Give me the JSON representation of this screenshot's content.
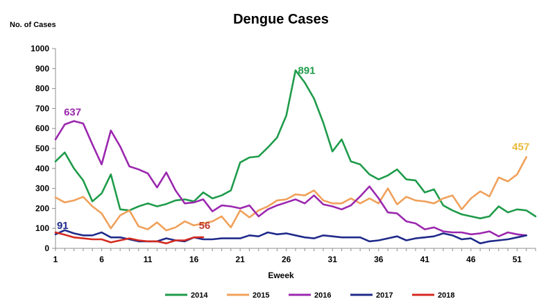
{
  "chart_data": {
    "type": "line",
    "title": "Dengue Cases",
    "ylabel": "No. of Cases",
    "xlabel": "Eweek",
    "ylim": [
      0,
      1000
    ],
    "yticks": [
      0,
      100,
      200,
      300,
      400,
      500,
      600,
      700,
      800,
      900,
      1000
    ],
    "xlim": [
      1,
      53
    ],
    "xticks": [
      1,
      6,
      11,
      16,
      21,
      26,
      31,
      36,
      41,
      46,
      51
    ],
    "grid": false,
    "legend_position": "bottom",
    "series": [
      {
        "name": "2014",
        "color": "#1e9b4a",
        "x": [
          1,
          2,
          3,
          4,
          5,
          6,
          7,
          8,
          9,
          10,
          11,
          12,
          13,
          14,
          15,
          16,
          17,
          18,
          19,
          20,
          21,
          22,
          23,
          24,
          25,
          26,
          27,
          28,
          29,
          30,
          31,
          32,
          33,
          34,
          35,
          36,
          37,
          38,
          39,
          40,
          41,
          42,
          43,
          44,
          45,
          46,
          47,
          48,
          49,
          50,
          51,
          52,
          53
        ],
        "values": [
          435,
          480,
          400,
          340,
          235,
          275,
          370,
          195,
          190,
          210,
          225,
          210,
          222,
          240,
          245,
          235,
          280,
          250,
          265,
          290,
          430,
          455,
          460,
          505,
          555,
          665,
          891,
          830,
          750,
          630,
          485,
          545,
          435,
          420,
          370,
          345,
          365,
          395,
          345,
          340,
          280,
          295,
          215,
          190,
          170,
          160,
          150,
          160,
          210,
          180,
          195,
          190,
          160
        ]
      },
      {
        "name": "2015",
        "color": "#f0a05a",
        "x": [
          1,
          2,
          3,
          4,
          5,
          6,
          7,
          8,
          9,
          10,
          11,
          12,
          13,
          14,
          15,
          16,
          17,
          18,
          19,
          20,
          21,
          22,
          23,
          24,
          25,
          26,
          27,
          28,
          29,
          30,
          31,
          32,
          33,
          34,
          35,
          36,
          37,
          38,
          39,
          40,
          41,
          42,
          43,
          44,
          45,
          46,
          47,
          48,
          49,
          50,
          51,
          52
        ],
        "values": [
          255,
          230,
          240,
          258,
          210,
          175,
          100,
          165,
          190,
          110,
          95,
          130,
          90,
          105,
          135,
          115,
          125,
          135,
          160,
          105,
          190,
          155,
          190,
          210,
          240,
          245,
          270,
          265,
          290,
          240,
          225,
          225,
          250,
          225,
          250,
          225,
          300,
          220,
          258,
          240,
          235,
          225,
          250,
          265,
          195,
          250,
          285,
          260,
          355,
          335,
          370,
          457
        ]
      },
      {
        "name": "2016",
        "color": "#9b27af",
        "x": [
          1,
          2,
          3,
          4,
          5,
          6,
          7,
          8,
          9,
          10,
          11,
          12,
          13,
          14,
          15,
          16,
          17,
          18,
          19,
          20,
          21,
          22,
          23,
          24,
          25,
          26,
          27,
          28,
          29,
          30,
          31,
          32,
          33,
          34,
          35,
          36,
          37,
          38,
          39,
          40,
          41,
          42,
          43,
          44,
          45,
          46,
          47,
          48,
          49,
          50,
          51,
          52
        ],
        "values": [
          545,
          620,
          637,
          625,
          520,
          420,
          590,
          510,
          410,
          395,
          375,
          305,
          380,
          290,
          225,
          230,
          245,
          185,
          215,
          210,
          200,
          215,
          160,
          195,
          215,
          230,
          245,
          225,
          265,
          220,
          210,
          195,
          215,
          260,
          310,
          250,
          180,
          175,
          135,
          125,
          95,
          105,
          85,
          80,
          80,
          70,
          75,
          85,
          60,
          80,
          70,
          65
        ]
      },
      {
        "name": "2017",
        "color": "#1f2a8a",
        "x": [
          1,
          2,
          3,
          4,
          5,
          6,
          7,
          8,
          9,
          10,
          11,
          12,
          13,
          14,
          15,
          16,
          17,
          18,
          19,
          20,
          21,
          22,
          23,
          24,
          25,
          26,
          27,
          28,
          29,
          30,
          31,
          32,
          33,
          34,
          35,
          36,
          37,
          38,
          39,
          40,
          41,
          42,
          43,
          44,
          45,
          46,
          47,
          48,
          49,
          50,
          51,
          52
        ],
        "values": [
          70,
          91,
          75,
          65,
          65,
          80,
          55,
          55,
          45,
          35,
          35,
          35,
          50,
          40,
          35,
          55,
          45,
          45,
          50,
          50,
          50,
          65,
          60,
          80,
          70,
          75,
          65,
          55,
          50,
          65,
          60,
          55,
          55,
          55,
          35,
          40,
          50,
          60,
          40,
          50,
          55,
          60,
          75,
          65,
          45,
          50,
          25,
          35,
          40,
          45,
          55,
          65
        ]
      },
      {
        "name": "2018",
        "color": "#d42a20",
        "x": [
          1,
          2,
          3,
          4,
          5,
          6,
          7,
          8,
          9,
          10,
          11,
          12,
          13,
          14,
          15,
          16,
          17
        ],
        "values": [
          80,
          68,
          55,
          50,
          45,
          45,
          30,
          40,
          50,
          40,
          35,
          35,
          25,
          40,
          40,
          55,
          56
        ]
      }
    ],
    "annotations": [
      {
        "text": "891",
        "series": "2014",
        "x": 27,
        "y": 891
      },
      {
        "text": "637",
        "series": "2016",
        "x": 3,
        "y": 637
      },
      {
        "text": "457",
        "series": "2015",
        "x": 52,
        "y": 457
      },
      {
        "text": "91",
        "series": "2017",
        "x": 2,
        "y": 91
      },
      {
        "text": "56",
        "series": "2018",
        "x": 17,
        "y": 56
      }
    ]
  },
  "colors": {
    "annotation_2014": "#1e9b4a",
    "annotation_2015": "#e8b83a",
    "annotation_2016": "#9b27af",
    "annotation_2017": "#1f2a8a",
    "annotation_2018": "#c0392b"
  }
}
